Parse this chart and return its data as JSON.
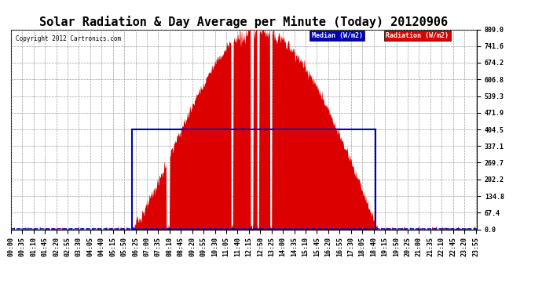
{
  "title": "Solar Radiation & Day Average per Minute (Today) 20120906",
  "copyright": "Copyright 2012 Cartronics.com",
  "yticks": [
    0.0,
    67.4,
    134.8,
    202.2,
    269.7,
    337.1,
    404.5,
    471.9,
    539.3,
    606.8,
    674.2,
    741.6,
    809.0
  ],
  "ymax": 809.0,
  "ymin": 0.0,
  "legend_median_label": "Median (W/m2)",
  "legend_radiation_label": "Radiation (W/m2)",
  "median_color": "#0000bb",
  "radiation_color": "#dd0000",
  "background_color": "#ffffff",
  "plot_bg_color": "#ffffff",
  "grid_color": "#888888",
  "title_fontsize": 11,
  "tick_fontsize": 6,
  "sunrise_minute": 370,
  "sunset_minute": 1130,
  "peak_minute": 760,
  "peak_value": 809.0,
  "rect_start_minute": 375,
  "rect_end_minute": 1125,
  "rect_top": 404.5,
  "median_y": 0.0,
  "white_dip_starts": [
    480,
    680,
    740,
    760,
    800
  ],
  "white_dip_widths": [
    10,
    6,
    8,
    6,
    6
  ],
  "tick_step_minutes": 35,
  "x_min": 0,
  "x_max": 1439
}
